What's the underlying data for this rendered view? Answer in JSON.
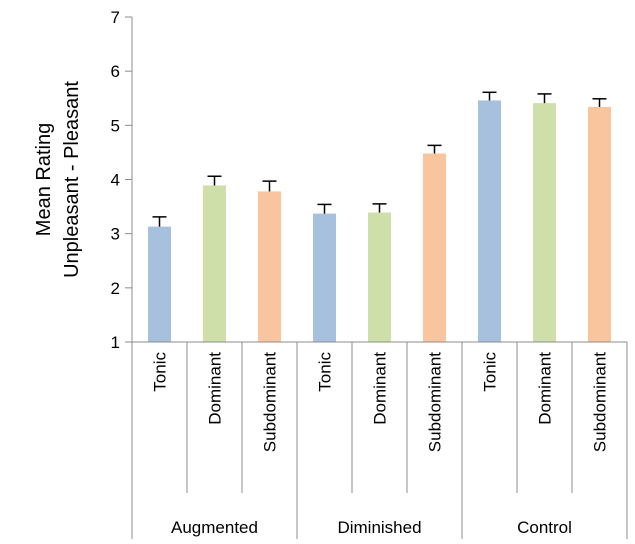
{
  "chart_data": {
    "type": "bar",
    "title": "",
    "ylabel_lines": [
      "Mean Rating",
      "Unpleasant - Pleasant"
    ],
    "xlabel": "",
    "ylim": [
      1,
      7
    ],
    "yticks": [
      1,
      2,
      3,
      4,
      5,
      6,
      7
    ],
    "grid": false,
    "legend": "none",
    "groups": [
      {
        "name": "Augmented",
        "bars": [
          {
            "label": "Tonic",
            "value": 3.13,
            "error": 0.18,
            "color": "#a7c0dd"
          },
          {
            "label": "Dominant",
            "value": 3.89,
            "error": 0.17,
            "color": "#cfdfa9"
          },
          {
            "label": "Subdominant",
            "value": 3.78,
            "error": 0.19,
            "color": "#f9c59e"
          }
        ]
      },
      {
        "name": "Diminished",
        "bars": [
          {
            "label": "Tonic",
            "value": 3.37,
            "error": 0.17,
            "color": "#a7c0dd"
          },
          {
            "label": "Dominant",
            "value": 3.39,
            "error": 0.16,
            "color": "#cfdfa9"
          },
          {
            "label": "Subdominant",
            "value": 4.48,
            "error": 0.15,
            "color": "#f9c59e"
          }
        ]
      },
      {
        "name": "Control",
        "bars": [
          {
            "label": "Tonic",
            "value": 5.46,
            "error": 0.15,
            "color": "#a7c0dd"
          },
          {
            "label": "Dominant",
            "value": 5.41,
            "error": 0.17,
            "color": "#cfdfa9"
          },
          {
            "label": "Subdominant",
            "value": 5.34,
            "error": 0.15,
            "color": "#f9c59e"
          }
        ]
      }
    ]
  }
}
